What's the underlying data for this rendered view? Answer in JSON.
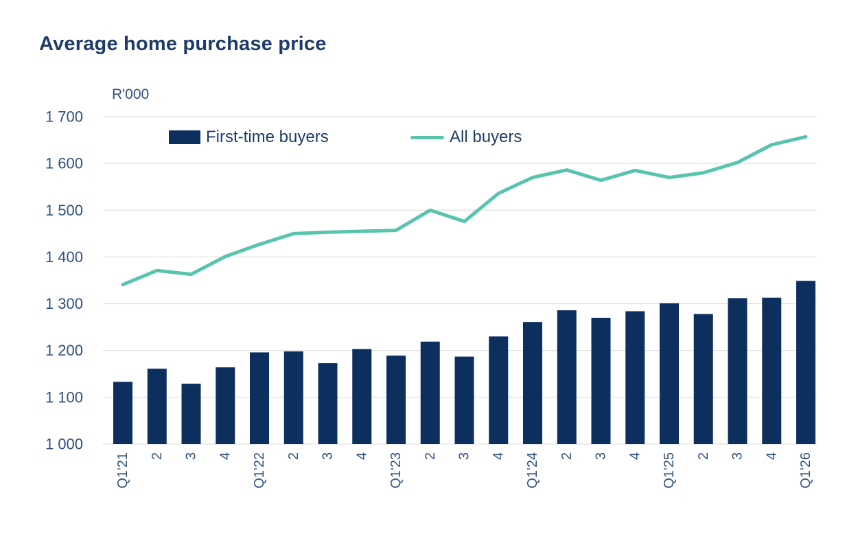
{
  "page": {
    "title": "Average home purchase price"
  },
  "colors": {
    "bar": "#0D2F5E",
    "line": "#58C4AE",
    "title_text": "#1E3C69",
    "tick_text": "#31517D",
    "gridline": "#D9D9D9",
    "background": "#FFFFFF"
  },
  "legend": {
    "items": [
      {
        "label": "First-time buyers",
        "swatch": "bar"
      },
      {
        "label": "All buyers",
        "swatch": "line"
      }
    ]
  },
  "chart_data": {
    "type": "combo-bar-line",
    "title": "Average home purchase price",
    "ylabel": "R'000",
    "xlabel": "",
    "categories": [
      "Q1'21",
      "2",
      "3",
      "4",
      "Q1'22",
      "2",
      "3",
      "4",
      "Q1'23",
      "2",
      "3",
      "4",
      "Q1'24",
      "2",
      "3",
      "4",
      "Q1'25",
      "2",
      "3",
      "4",
      "Q1'26"
    ],
    "series": [
      {
        "name": "First-time buyers",
        "type": "bar",
        "color": "#0D2F5E",
        "values": [
          1133,
          1161,
          1129,
          1164,
          1196,
          1198,
          1173,
          1203,
          1189,
          1219,
          1187,
          1230,
          1261,
          1286,
          1270,
          1284,
          1301,
          1278,
          1312,
          1313,
          1349
        ]
      },
      {
        "name": "All buyers",
        "type": "line",
        "color": "#58C4AE",
        "values": [
          1341,
          1371,
          1363,
          1401,
          1427,
          1450,
          1453,
          1455,
          1457,
          1500,
          1476,
          1536,
          1570,
          1586,
          1564,
          1585,
          1570,
          1580,
          1602,
          1640,
          1657
        ]
      }
    ],
    "ylim": [
      1000,
      1700
    ],
    "yticks": [
      {
        "value": 1000,
        "label": "1 000"
      },
      {
        "value": 1100,
        "label": "1 100"
      },
      {
        "value": 1200,
        "label": "1 200"
      },
      {
        "value": 1300,
        "label": "1 300"
      },
      {
        "value": 1400,
        "label": "1 400"
      },
      {
        "value": 1500,
        "label": "1 500"
      },
      {
        "value": 1600,
        "label": "1 600"
      },
      {
        "value": 1700,
        "label": "1 700"
      }
    ],
    "grid": true,
    "legend_position": "top-left-inside",
    "x_tick_rotation_deg": 90
  }
}
